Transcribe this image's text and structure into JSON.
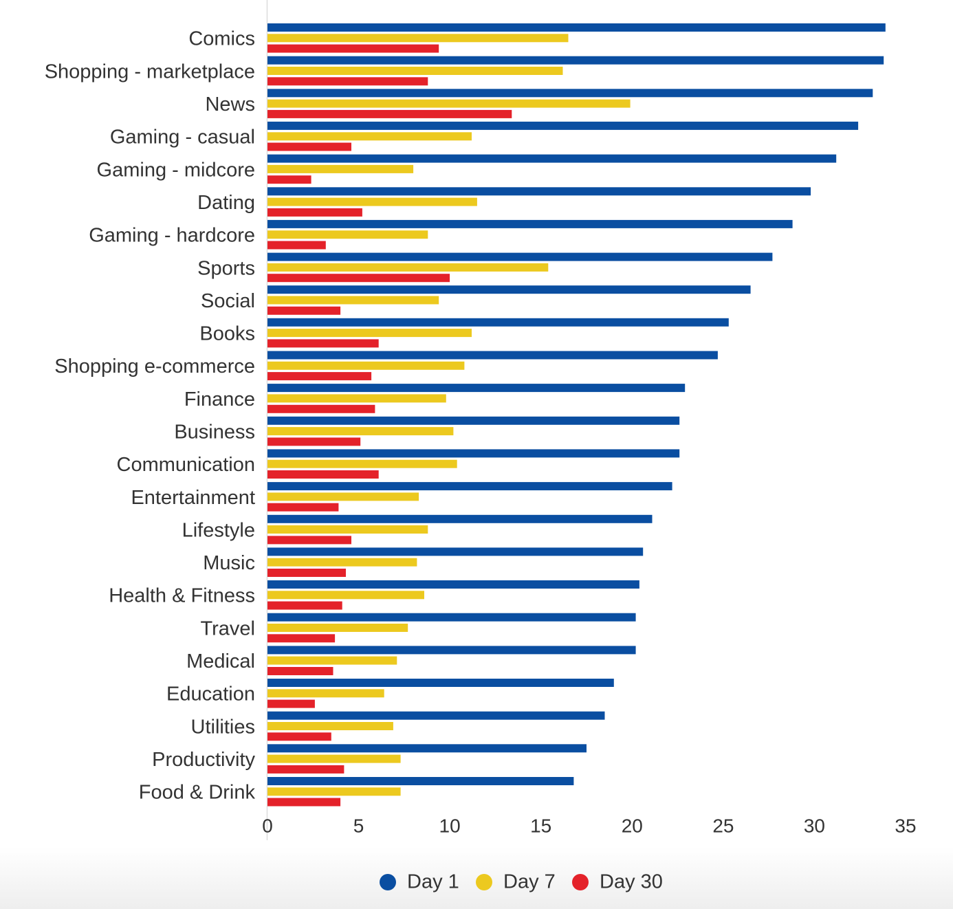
{
  "chart_data": {
    "type": "bar",
    "orientation": "horizontal",
    "title": "",
    "xlabel": "",
    "ylabel": "",
    "xlim": [
      0,
      35
    ],
    "ticks": [
      0,
      5,
      10,
      15,
      20,
      25,
      30,
      35
    ],
    "grid": false,
    "legend_position": "bottom-center",
    "categories": [
      "Comics",
      "Shopping - marketplace",
      "News",
      "Gaming - casual",
      "Gaming - midcore",
      "Dating",
      "Gaming - hardcore",
      "Sports",
      "Social",
      "Books",
      "Shopping e-commerce",
      "Finance",
      "Business",
      "Communication",
      "Entertainment",
      "Lifestyle",
      "Music",
      "Health & Fitness",
      "Travel",
      "Medical",
      "Education",
      "Utilities",
      "Productivity",
      "Food & Drink"
    ],
    "series": [
      {
        "name": "Day 1",
        "color": "#0a4ea1",
        "values": [
          33.9,
          33.8,
          33.2,
          32.4,
          31.2,
          29.8,
          28.8,
          27.7,
          26.5,
          25.3,
          24.7,
          22.9,
          22.6,
          22.6,
          22.2,
          21.1,
          20.6,
          20.4,
          20.2,
          20.2,
          19.0,
          18.5,
          17.5,
          16.8
        ]
      },
      {
        "name": "Day 7",
        "color": "#ecc91f",
        "values": [
          16.5,
          16.2,
          19.9,
          11.2,
          8.0,
          11.5,
          8.8,
          15.4,
          9.4,
          11.2,
          10.8,
          9.8,
          10.2,
          10.4,
          8.3,
          8.8,
          8.2,
          8.6,
          7.7,
          7.1,
          6.4,
          6.9,
          7.3,
          7.3
        ]
      },
      {
        "name": "Day 30",
        "color": "#e4222a",
        "values": [
          9.4,
          8.8,
          13.4,
          4.6,
          2.4,
          5.2,
          3.2,
          10.0,
          4.0,
          6.1,
          5.7,
          5.9,
          5.1,
          6.1,
          3.9,
          4.6,
          4.3,
          4.1,
          3.7,
          3.6,
          2.6,
          3.5,
          4.2,
          4.0
        ]
      }
    ]
  }
}
